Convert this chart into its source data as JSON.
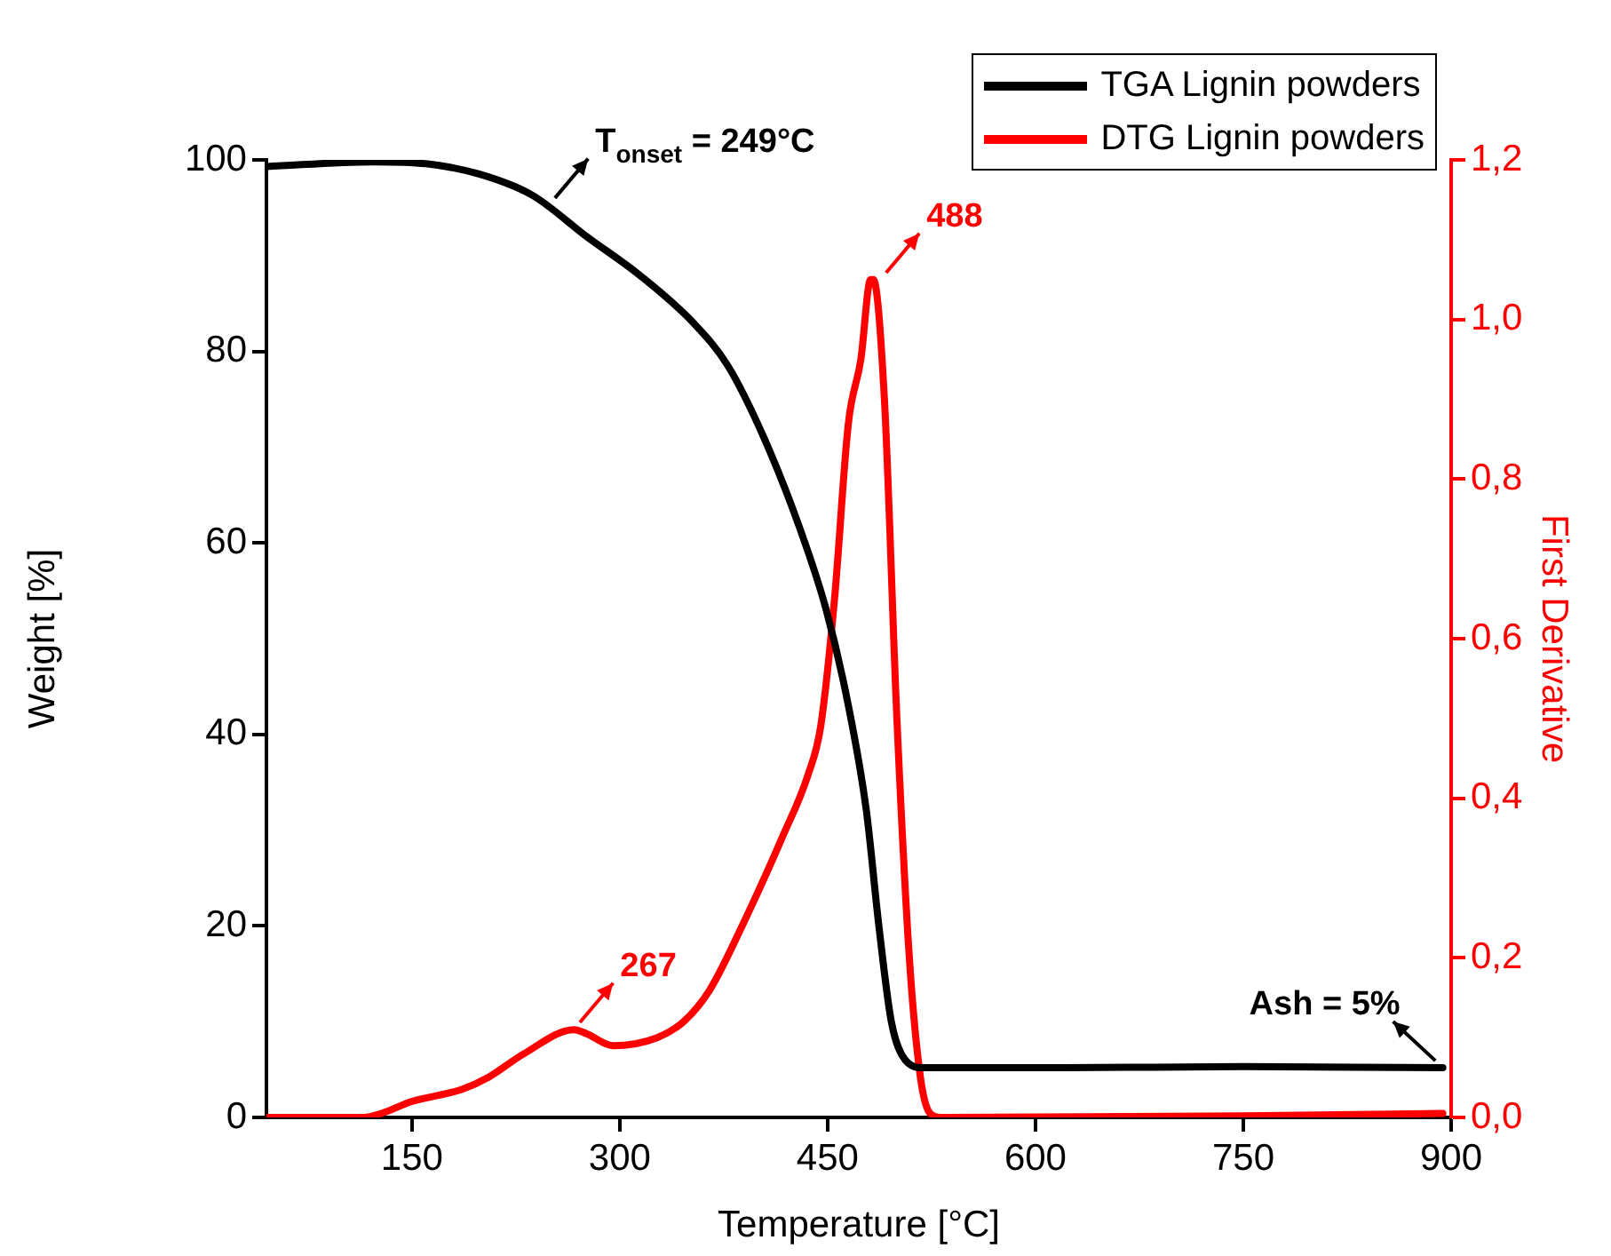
{
  "chart_data": {
    "type": "line",
    "xlabel": "Temperature [°C]",
    "ylabel": "Weight [%]",
    "y2label": "First Derivative",
    "xlim": [
      45,
      900
    ],
    "xticks": [
      150,
      300,
      450,
      600,
      750,
      900
    ],
    "ylim": [
      0,
      100
    ],
    "yticks": [
      0,
      20,
      40,
      60,
      80,
      100
    ],
    "y2lim": [
      0,
      1.2
    ],
    "y2ticks": [
      {
        "value": 0,
        "label": "0,0"
      },
      {
        "value": 0.2,
        "label": "0,2"
      },
      {
        "value": 0.4,
        "label": "0,4"
      },
      {
        "value": 0.6,
        "label": "0,6"
      },
      {
        "value": 0.8,
        "label": "0,8"
      },
      {
        "value": 1.0,
        "label": "1,0"
      },
      {
        "value": 1.2,
        "label": "1,2"
      }
    ],
    "grid": false,
    "legend": "top right",
    "line_style": "solid",
    "marker": "none",
    "series": [
      {
        "name": "TGA Lignin powders",
        "color": "#000000",
        "x": [
          45,
          122,
          160,
          199,
          237,
          276,
          314,
          353,
          378,
          404,
          430,
          449,
          465,
          478,
          487,
          496,
          506,
          519,
          622,
          750,
          894
        ],
        "values": [
          99.3,
          99.8,
          99.6,
          98.5,
          96.3,
          92,
          88,
          83,
          78.5,
          71,
          61.5,
          53,
          43,
          32,
          20,
          10,
          6,
          5.2,
          5.2,
          5.3,
          5.2
        ]
      },
      {
        "name": "DTG Lignin powders",
        "color": "#ff0000",
        "axis": "y2",
        "x": [
          45,
          115,
          128,
          150,
          186,
          205,
          231,
          267,
          276,
          295,
          327,
          346,
          365,
          391,
          417,
          436,
          445,
          455,
          465,
          474,
          481,
          483,
          491,
          500,
          509,
          517,
          524,
          532,
          750,
          894
        ],
        "values": [
          0,
          0,
          0.005,
          0.02,
          0.035,
          0.05,
          0.08,
          0.11,
          0.105,
          0.09,
          0.1,
          0.12,
          0.16,
          0.25,
          0.35,
          0.43,
          0.49,
          0.65,
          0.87,
          0.95,
          1.05,
          1.05,
          0.9,
          0.5,
          0.2,
          0.05,
          0.005,
          0,
          0.002,
          0.005
        ]
      }
    ],
    "annotations": [
      {
        "text": "T$_{onset}$ = 249°C",
        "x": 249,
        "y": 95.3
      },
      {
        "text": "488",
        "x": 488,
        "y": 87.5
      },
      {
        "text": "267",
        "x": 267,
        "y": 9.2
      },
      {
        "text": "Ash = 5%",
        "x": 894,
        "y": 5.2
      }
    ]
  }
}
